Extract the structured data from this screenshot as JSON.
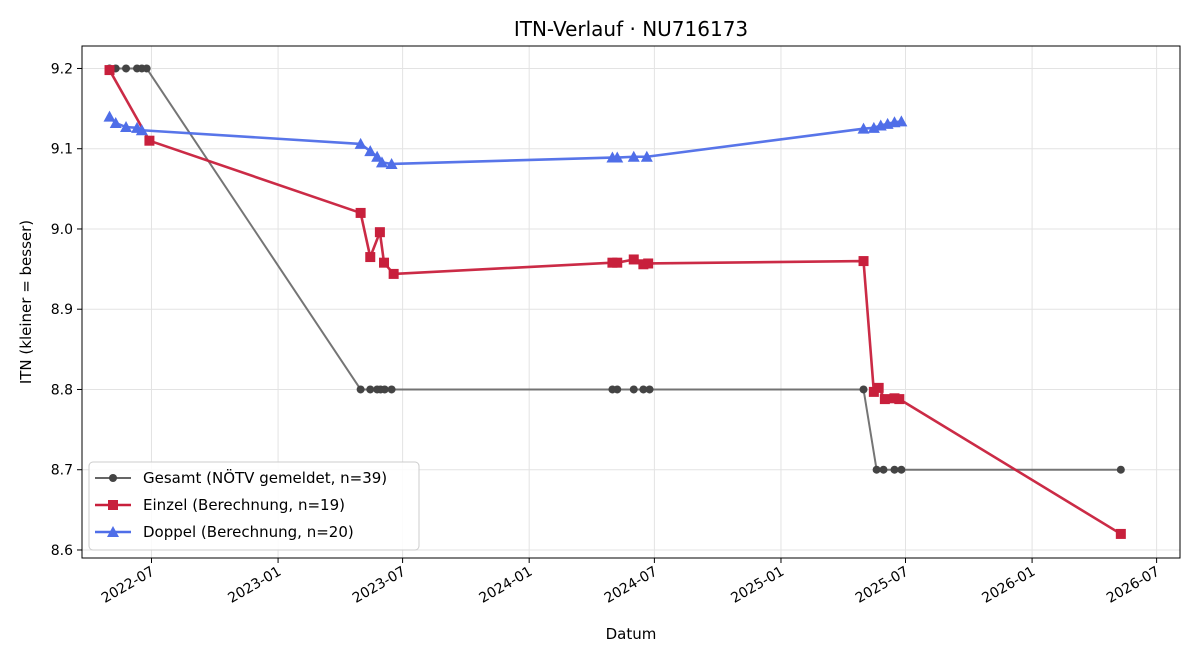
{
  "chart_data": {
    "type": "line",
    "title": "ITN-Verlauf · NU716173",
    "xlabel": "Datum",
    "ylabel": "ITN  (kleiner = besser)",
    "x_axis_type": "date",
    "xlim": [
      "2022-03-22",
      "2026-08-04"
    ],
    "ylim": [
      8.59,
      9.228
    ],
    "x_ticks": [
      {
        "date": "2022-07-01",
        "label": "2022-07"
      },
      {
        "date": "2023-01-01",
        "label": "2023-01"
      },
      {
        "date": "2023-07-01",
        "label": "2023-07"
      },
      {
        "date": "2024-01-01",
        "label": "2024-01"
      },
      {
        "date": "2024-07-01",
        "label": "2024-07"
      },
      {
        "date": "2025-01-01",
        "label": "2025-01"
      },
      {
        "date": "2025-07-01",
        "label": "2025-07"
      },
      {
        "date": "2026-01-01",
        "label": "2026-01"
      },
      {
        "date": "2026-07-01",
        "label": "2026-07"
      }
    ],
    "y_ticks": [
      8.6,
      8.7,
      8.8,
      8.9,
      9.0,
      9.1,
      9.2
    ],
    "grid": true,
    "legend_position": "lower-left",
    "series": [
      {
        "name": "Gesamt (NÖTV gemeldet, n=39)",
        "color": "#666666",
        "marker": "circle",
        "points": [
          {
            "x": "2022-05-01",
            "y": 9.2
          },
          {
            "x": "2022-05-10",
            "y": 9.2
          },
          {
            "x": "2022-05-25",
            "y": 9.2
          },
          {
            "x": "2022-06-10",
            "y": 9.2
          },
          {
            "x": "2022-06-17",
            "y": 9.2
          },
          {
            "x": "2022-06-24",
            "y": 9.2
          },
          {
            "x": "2023-05-01",
            "y": 8.8
          },
          {
            "x": "2023-05-15",
            "y": 8.8
          },
          {
            "x": "2023-05-25",
            "y": 8.8
          },
          {
            "x": "2023-05-30",
            "y": 8.8
          },
          {
            "x": "2023-06-05",
            "y": 8.8
          },
          {
            "x": "2023-06-15",
            "y": 8.8
          },
          {
            "x": "2024-05-01",
            "y": 8.8
          },
          {
            "x": "2024-05-08",
            "y": 8.8
          },
          {
            "x": "2024-06-01",
            "y": 8.8
          },
          {
            "x": "2024-06-15",
            "y": 8.8
          },
          {
            "x": "2024-06-24",
            "y": 8.8
          },
          {
            "x": "2025-05-01",
            "y": 8.8
          },
          {
            "x": "2025-05-20",
            "y": 8.7
          },
          {
            "x": "2025-05-30",
            "y": 8.7
          },
          {
            "x": "2025-06-15",
            "y": 8.7
          },
          {
            "x": "2025-06-25",
            "y": 8.7
          },
          {
            "x": "2026-05-10",
            "y": 8.7
          }
        ]
      },
      {
        "name": "Einzel (Berechnung, n=19)",
        "color": "#c8203c",
        "marker": "square",
        "points": [
          {
            "x": "2022-05-01",
            "y": 9.198
          },
          {
            "x": "2022-06-28",
            "y": 9.11
          },
          {
            "x": "2023-05-01",
            "y": 9.02
          },
          {
            "x": "2023-05-15",
            "y": 8.965
          },
          {
            "x": "2023-05-29",
            "y": 8.996
          },
          {
            "x": "2023-06-04",
            "y": 8.958
          },
          {
            "x": "2023-06-18",
            "y": 8.944
          },
          {
            "x": "2024-05-01",
            "y": 8.958
          },
          {
            "x": "2024-05-08",
            "y": 8.958
          },
          {
            "x": "2024-06-01",
            "y": 8.962
          },
          {
            "x": "2024-06-15",
            "y": 8.956
          },
          {
            "x": "2024-06-22",
            "y": 8.957
          },
          {
            "x": "2025-05-01",
            "y": 8.96
          },
          {
            "x": "2025-05-16",
            "y": 8.797
          },
          {
            "x": "2025-05-23",
            "y": 8.802
          },
          {
            "x": "2025-06-01",
            "y": 8.788
          },
          {
            "x": "2025-06-15",
            "y": 8.789
          },
          {
            "x": "2025-06-22",
            "y": 8.788
          },
          {
            "x": "2026-05-10",
            "y": 8.62
          }
        ]
      },
      {
        "name": "Doppel (Berechnung, n=20)",
        "color": "#4f6ee8",
        "marker": "triangle",
        "points": [
          {
            "x": "2022-05-01",
            "y": 9.14
          },
          {
            "x": "2022-05-10",
            "y": 9.132
          },
          {
            "x": "2022-05-25",
            "y": 9.127
          },
          {
            "x": "2022-06-10",
            "y": 9.126
          },
          {
            "x": "2022-06-17",
            "y": 9.123
          },
          {
            "x": "2023-05-01",
            "y": 9.106
          },
          {
            "x": "2023-05-15",
            "y": 9.097
          },
          {
            "x": "2023-05-25",
            "y": 9.09
          },
          {
            "x": "2023-06-01",
            "y": 9.083
          },
          {
            "x": "2023-06-15",
            "y": 9.081
          },
          {
            "x": "2024-05-01",
            "y": 9.089
          },
          {
            "x": "2024-05-08",
            "y": 9.089
          },
          {
            "x": "2024-06-01",
            "y": 9.09
          },
          {
            "x": "2024-06-20",
            "y": 9.09
          },
          {
            "x": "2025-05-01",
            "y": 9.125
          },
          {
            "x": "2025-05-16",
            "y": 9.126
          },
          {
            "x": "2025-05-26",
            "y": 9.129
          },
          {
            "x": "2025-06-05",
            "y": 9.131
          },
          {
            "x": "2025-06-15",
            "y": 9.133
          },
          {
            "x": "2025-06-25",
            "y": 9.134
          }
        ]
      }
    ]
  }
}
